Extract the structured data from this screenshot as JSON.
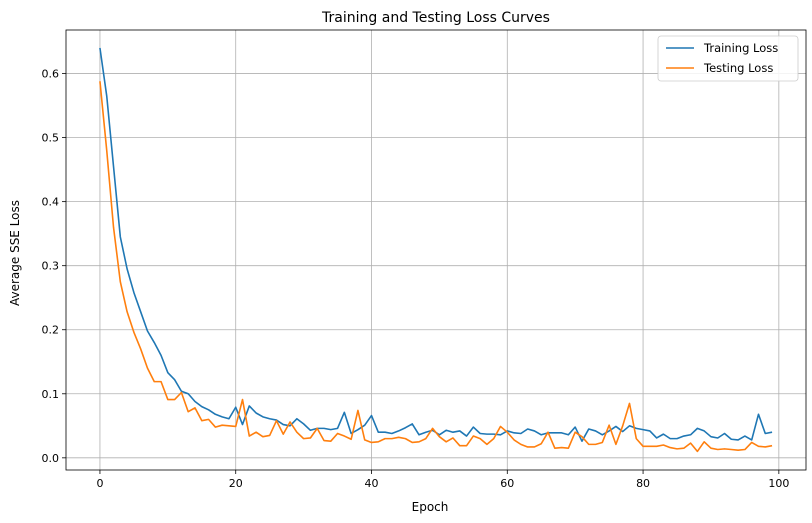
{
  "chart_data": {
    "type": "line",
    "title": "Training and Testing Loss Curves",
    "xlabel": "Epoch",
    "ylabel": "Average SSE Loss",
    "xlim": [
      -5,
      104
    ],
    "ylim": [
      -0.019,
      0.668
    ],
    "xticks": [
      0,
      20,
      40,
      60,
      80,
      100
    ],
    "yticks": [
      0.0,
      0.1,
      0.2,
      0.3,
      0.4,
      0.5,
      0.6
    ],
    "ytick_labels": [
      "0.0",
      "0.1",
      "0.2",
      "0.3",
      "0.4",
      "0.5",
      "0.6"
    ],
    "grid": true,
    "legend_position": "top-right",
    "x": [
      0,
      1,
      2,
      3,
      4,
      5,
      6,
      7,
      8,
      9,
      10,
      11,
      12,
      13,
      14,
      15,
      16,
      17,
      18,
      19,
      20,
      21,
      22,
      23,
      24,
      25,
      26,
      27,
      28,
      29,
      30,
      31,
      32,
      33,
      34,
      35,
      36,
      37,
      38,
      39,
      40,
      41,
      42,
      43,
      44,
      45,
      46,
      47,
      48,
      49,
      50,
      51,
      52,
      53,
      54,
      55,
      56,
      57,
      58,
      59,
      60,
      61,
      62,
      63,
      64,
      65,
      66,
      67,
      68,
      69,
      70,
      71,
      72,
      73,
      74,
      75,
      76,
      77,
      78,
      79,
      80,
      81,
      82,
      83,
      84,
      85,
      86,
      87,
      88,
      89,
      90,
      91,
      92,
      93,
      94,
      95,
      96,
      97,
      98,
      99
    ],
    "series": [
      {
        "name": "Training Loss",
        "color": "#1f77b4",
        "values": [
          0.64,
          0.565,
          0.455,
          0.345,
          0.295,
          0.258,
          0.228,
          0.198,
          0.18,
          0.16,
          0.133,
          0.122,
          0.104,
          0.1,
          0.088,
          0.08,
          0.075,
          0.068,
          0.064,
          0.061,
          0.079,
          0.052,
          0.081,
          0.07,
          0.064,
          0.061,
          0.059,
          0.052,
          0.05,
          0.061,
          0.053,
          0.043,
          0.046,
          0.046,
          0.044,
          0.046,
          0.071,
          0.038,
          0.044,
          0.051,
          0.066,
          0.04,
          0.04,
          0.038,
          0.042,
          0.047,
          0.053,
          0.036,
          0.04,
          0.043,
          0.036,
          0.043,
          0.04,
          0.042,
          0.034,
          0.048,
          0.038,
          0.037,
          0.037,
          0.036,
          0.042,
          0.039,
          0.038,
          0.045,
          0.042,
          0.036,
          0.039,
          0.039,
          0.039,
          0.036,
          0.048,
          0.026,
          0.045,
          0.042,
          0.036,
          0.042,
          0.049,
          0.041,
          0.05,
          0.046,
          0.044,
          0.042,
          0.031,
          0.037,
          0.03,
          0.03,
          0.034,
          0.036,
          0.046,
          0.042,
          0.033,
          0.031,
          0.038,
          0.029,
          0.028,
          0.034,
          0.028,
          0.068,
          0.038,
          0.04
        ]
      },
      {
        "name": "Testing Loss",
        "color": "#ff7f0e",
        "values": [
          0.588,
          0.48,
          0.36,
          0.275,
          0.228,
          0.196,
          0.17,
          0.14,
          0.119,
          0.119,
          0.091,
          0.091,
          0.102,
          0.072,
          0.078,
          0.058,
          0.06,
          0.048,
          0.051,
          0.05,
          0.049,
          0.091,
          0.034,
          0.04,
          0.033,
          0.035,
          0.058,
          0.037,
          0.056,
          0.04,
          0.03,
          0.031,
          0.046,
          0.027,
          0.026,
          0.038,
          0.034,
          0.029,
          0.074,
          0.028,
          0.024,
          0.025,
          0.03,
          0.03,
          0.032,
          0.03,
          0.024,
          0.025,
          0.03,
          0.046,
          0.033,
          0.025,
          0.031,
          0.019,
          0.019,
          0.034,
          0.03,
          0.021,
          0.03,
          0.049,
          0.04,
          0.028,
          0.021,
          0.017,
          0.017,
          0.022,
          0.04,
          0.015,
          0.016,
          0.015,
          0.04,
          0.033,
          0.021,
          0.021,
          0.024,
          0.051,
          0.021,
          0.05,
          0.085,
          0.03,
          0.018,
          0.018,
          0.018,
          0.02,
          0.016,
          0.014,
          0.015,
          0.023,
          0.01,
          0.025,
          0.015,
          0.013,
          0.014,
          0.013,
          0.012,
          0.013,
          0.024,
          0.018,
          0.017,
          0.019
        ]
      }
    ]
  }
}
